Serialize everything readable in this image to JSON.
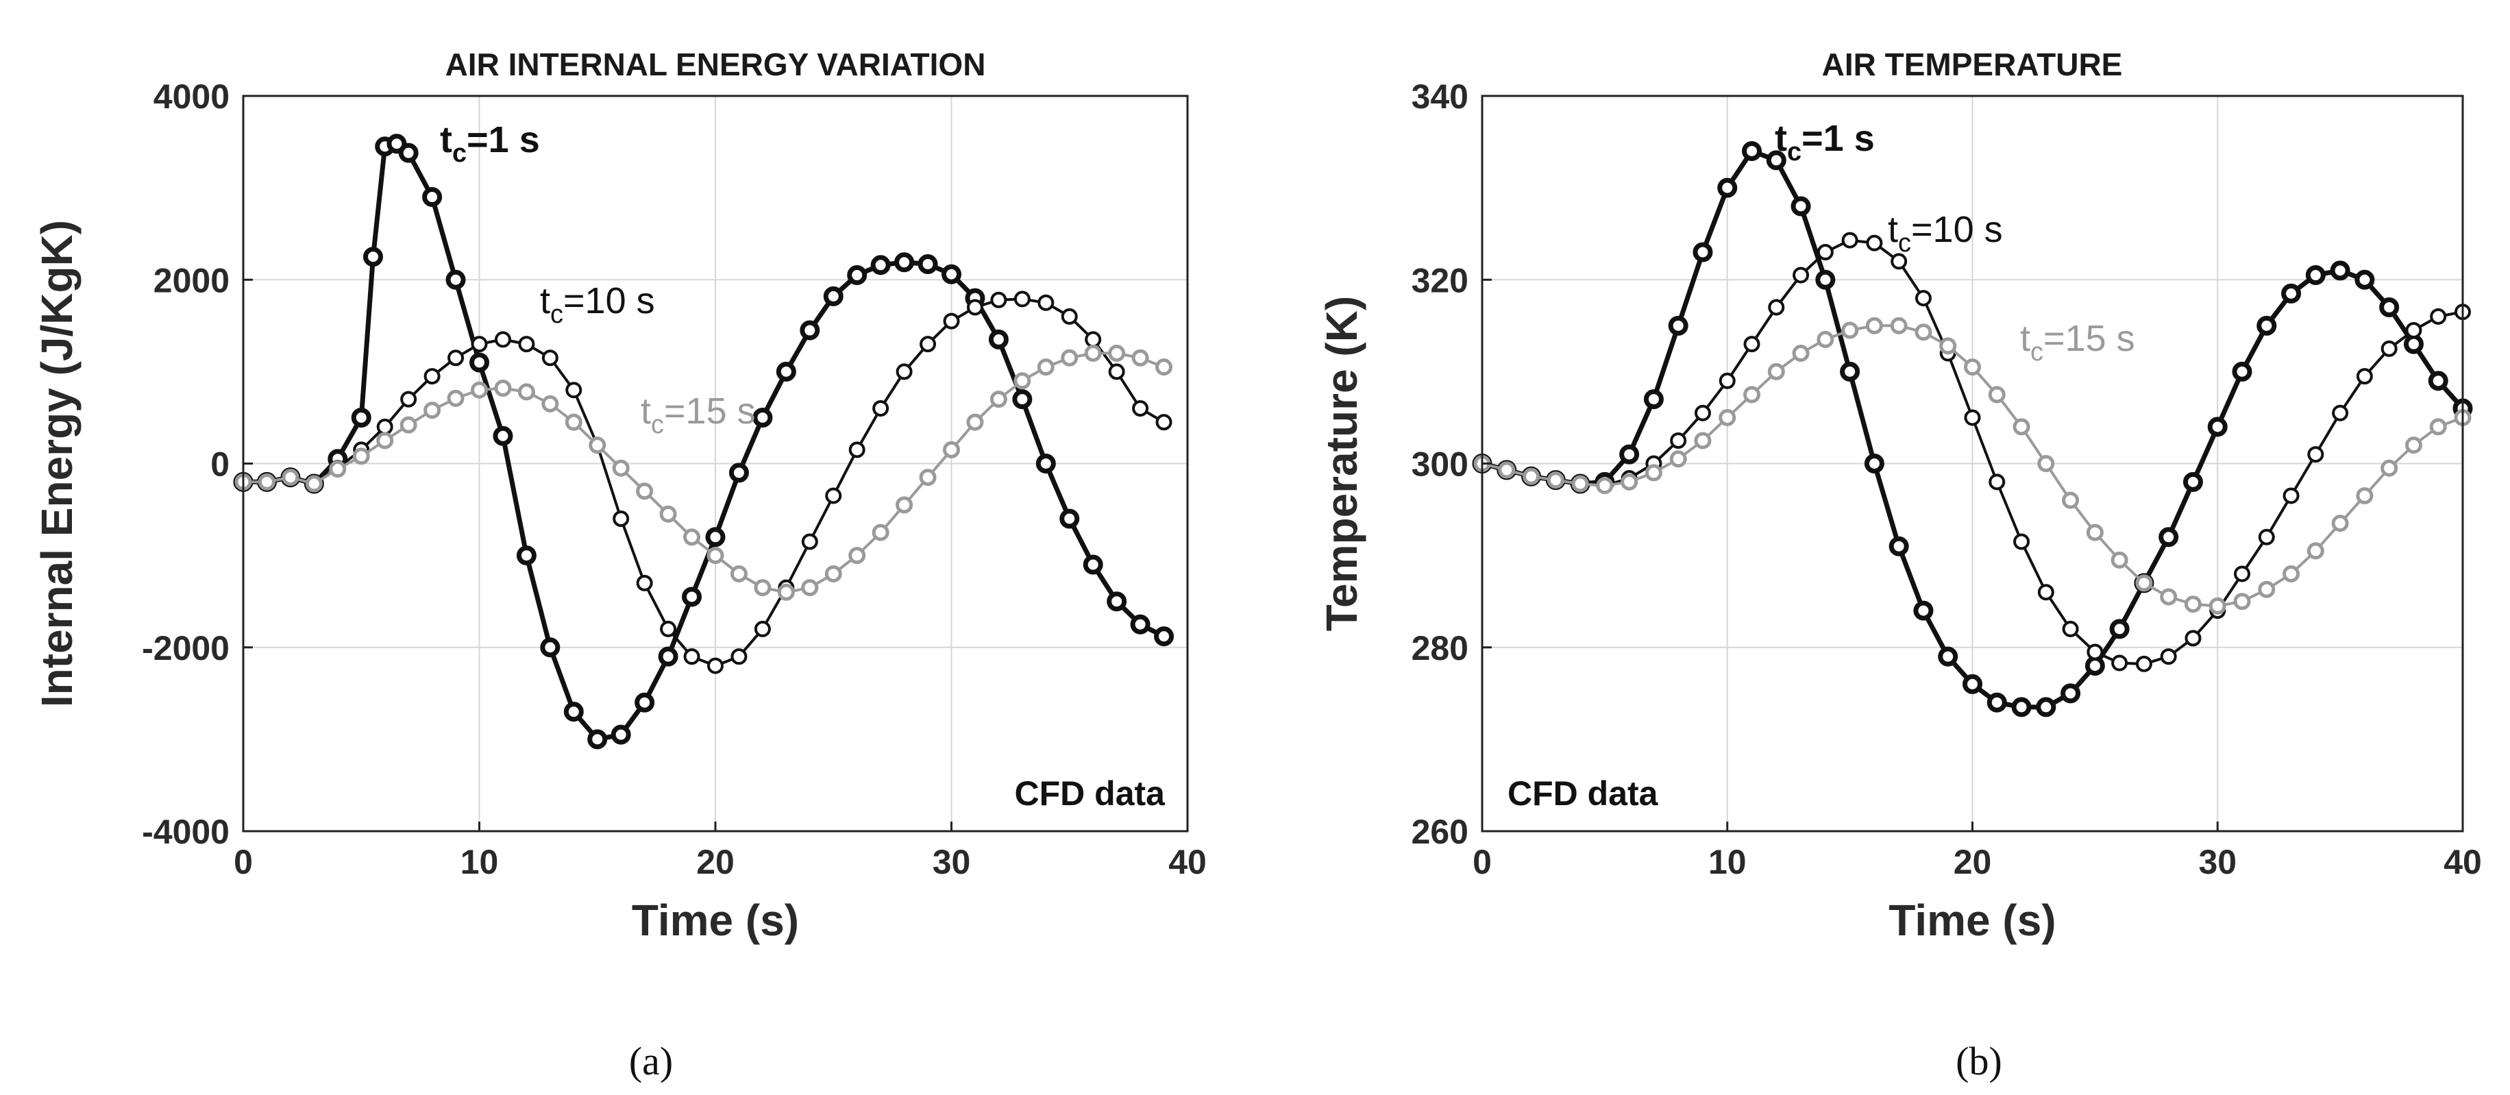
{
  "chart_data": [
    {
      "type": "line",
      "panel": "a",
      "title": "AIR INTERNAL ENERGY VARIATION",
      "xlabel": "Time (s)",
      "ylabel": "Internal Energy (J/KgK)",
      "xlim": [
        0,
        40
      ],
      "ylim": [
        -4000,
        4000
      ],
      "xticks": [
        0,
        10,
        20,
        30,
        40
      ],
      "yticks": [
        -4000,
        -2000,
        0,
        2000,
        4000
      ],
      "xtick_labels": [
        "0",
        "10",
        "20",
        "30",
        "40"
      ],
      "ytick_labels": [
        "-4000",
        "-2000",
        "0",
        "2000",
        "4000"
      ],
      "grid": true,
      "note": "CFD data",
      "caption": "(a)",
      "series": [
        {
          "name": "t_c=1 s",
          "label_main": "t",
          "label_sub": "c",
          "label_rest": "=1 s",
          "color": "#111111",
          "style": "heavy",
          "x": [
            0,
            1,
            2,
            3,
            4,
            5,
            5.5,
            6,
            6.5,
            7,
            8,
            9,
            10,
            11,
            12,
            13,
            14,
            15,
            16,
            17,
            18,
            19,
            20,
            21,
            22,
            23,
            24,
            25,
            26,
            27,
            28,
            29,
            30,
            31,
            32,
            33,
            34,
            35,
            36,
            37,
            38,
            39
          ],
          "y": [
            -200,
            -200,
            -150,
            -220,
            50,
            500,
            2250,
            3450,
            3480,
            3380,
            2900,
            2000,
            1100,
            300,
            -1000,
            -2000,
            -2700,
            -3000,
            -2950,
            -2600,
            -2100,
            -1450,
            -800,
            -100,
            500,
            1000,
            1450,
            1820,
            2050,
            2160,
            2190,
            2170,
            2060,
            1800,
            1350,
            700,
            0,
            -600,
            -1100,
            -1500,
            -1750,
            -1880
          ]
        },
        {
          "name": "t_c=10 s",
          "label_main": "t",
          "label_sub": "c",
          "label_rest": "=10 s",
          "color": "#111111",
          "style": "medium",
          "x": [
            0,
            1,
            2,
            3,
            4,
            5,
            6,
            7,
            8,
            9,
            10,
            11,
            12,
            13,
            14,
            15,
            16,
            17,
            18,
            19,
            20,
            21,
            22,
            23,
            24,
            25,
            26,
            27,
            28,
            29,
            30,
            31,
            32,
            33,
            34,
            35,
            36,
            37,
            38,
            39
          ],
          "y": [
            -200,
            -200,
            -150,
            -220,
            -50,
            150,
            400,
            700,
            950,
            1150,
            1300,
            1350,
            1300,
            1150,
            800,
            200,
            -600,
            -1300,
            -1800,
            -2100,
            -2200,
            -2100,
            -1800,
            -1350,
            -850,
            -350,
            150,
            600,
            1000,
            1300,
            1550,
            1700,
            1780,
            1790,
            1750,
            1600,
            1350,
            1000,
            600,
            450
          ]
        },
        {
          "name": "t_c=15 s",
          "label_main": "t",
          "label_sub": "c",
          "label_rest": "=15 s",
          "color": "#9a9a9a",
          "style": "gray",
          "x": [
            0,
            1,
            2,
            3,
            4,
            5,
            6,
            7,
            8,
            9,
            10,
            11,
            12,
            13,
            14,
            15,
            16,
            17,
            18,
            19,
            20,
            21,
            22,
            23,
            24,
            25,
            26,
            27,
            28,
            29,
            30,
            31,
            32,
            33,
            34,
            35,
            36,
            37,
            38,
            39
          ],
          "y": [
            -200,
            -200,
            -150,
            -220,
            -60,
            80,
            250,
            420,
            580,
            710,
            800,
            820,
            780,
            650,
            450,
            200,
            -50,
            -300,
            -550,
            -800,
            -1000,
            -1200,
            -1350,
            -1400,
            -1350,
            -1200,
            -1000,
            -750,
            -450,
            -150,
            150,
            450,
            700,
            900,
            1050,
            1150,
            1200,
            1200,
            1150,
            1050
          ]
        }
      ]
    },
    {
      "type": "line",
      "panel": "b",
      "title": "AIR TEMPERATURE",
      "xlabel": "Time (s)",
      "ylabel": "Temperature (K)",
      "xlim": [
        0,
        40
      ],
      "ylim": [
        260,
        340
      ],
      "xticks": [
        0,
        10,
        20,
        30,
        40
      ],
      "yticks": [
        260,
        280,
        300,
        320,
        340
      ],
      "xtick_labels": [
        "0",
        "10",
        "20",
        "30",
        "40"
      ],
      "ytick_labels": [
        "260",
        "280",
        "300",
        "320",
        "340"
      ],
      "grid": true,
      "note": "CFD data",
      "caption": "(b)",
      "series": [
        {
          "name": "t_c=1 s",
          "label_main": "t",
          "label_sub": "c",
          "label_rest": "=1 s",
          "color": "#111111",
          "style": "heavy",
          "x": [
            0,
            1,
            2,
            3,
            4,
            5,
            6,
            7,
            8,
            9,
            10,
            11,
            12,
            13,
            14,
            15,
            16,
            17,
            18,
            19,
            20,
            21,
            22,
            23,
            24,
            25,
            26,
            27,
            28,
            29,
            30,
            31,
            32,
            33,
            34,
            35,
            36,
            37,
            38,
            39,
            40
          ],
          "y": [
            300,
            299.3,
            298.6,
            298.2,
            297.8,
            298,
            301,
            307,
            315,
            323,
            330,
            334,
            333,
            328,
            320,
            310,
            300,
            291,
            284,
            279,
            276,
            274,
            273.5,
            273.5,
            275,
            278,
            282,
            287,
            292,
            298,
            304,
            310,
            315,
            318.5,
            320.5,
            321,
            320,
            317,
            313,
            309,
            306
          ]
        },
        {
          "name": "t_c=10 s",
          "label_main": "t",
          "label_sub": "c",
          "label_rest": "=10 s",
          "color": "#111111",
          "style": "medium",
          "x": [
            0,
            1,
            2,
            3,
            4,
            5,
            6,
            7,
            8,
            9,
            10,
            11,
            12,
            13,
            14,
            15,
            16,
            17,
            18,
            19,
            20,
            21,
            22,
            23,
            24,
            25,
            26,
            27,
            28,
            29,
            30,
            31,
            32,
            33,
            34,
            35,
            36,
            37,
            38,
            39,
            40
          ],
          "y": [
            300,
            299.3,
            298.6,
            298.2,
            297.8,
            297.6,
            298.4,
            300,
            302.5,
            305.5,
            309,
            313,
            317,
            320.5,
            323,
            324.3,
            324,
            322,
            318,
            312,
            305,
            298,
            291.5,
            286,
            282,
            279.5,
            278.3,
            278.2,
            279,
            281,
            284,
            288,
            292,
            296.5,
            301,
            305.5,
            309.5,
            312.5,
            314.5,
            316,
            316.5
          ]
        },
        {
          "name": "t_c=15 s",
          "label_main": "t",
          "label_sub": "c",
          "label_rest": "=15 s",
          "color": "#9a9a9a",
          "style": "gray",
          "x": [
            0,
            1,
            2,
            3,
            4,
            5,
            6,
            7,
            8,
            9,
            10,
            11,
            12,
            13,
            14,
            15,
            16,
            17,
            18,
            19,
            20,
            21,
            22,
            23,
            24,
            25,
            26,
            27,
            28,
            29,
            30,
            31,
            32,
            33,
            34,
            35,
            36,
            37,
            38,
            39,
            40
          ],
          "y": [
            300,
            299.3,
            298.6,
            298.2,
            297.8,
            297.6,
            298,
            299,
            300.5,
            302.5,
            305,
            307.5,
            310,
            312,
            313.5,
            314.5,
            315,
            315,
            314.3,
            312.8,
            310.5,
            307.5,
            304,
            300,
            296,
            292.5,
            289.5,
            287,
            285.5,
            284.7,
            284.5,
            285,
            286.3,
            288,
            290.5,
            293.5,
            296.5,
            299.5,
            302,
            304,
            305
          ]
        }
      ]
    }
  ]
}
